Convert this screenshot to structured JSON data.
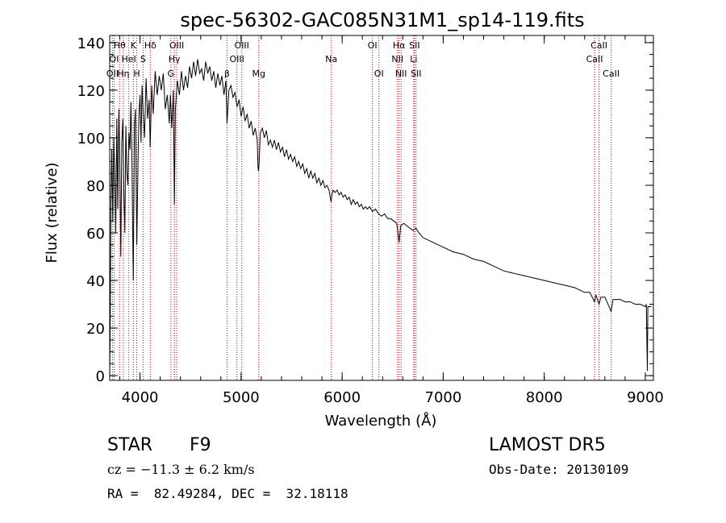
{
  "chart_data": {
    "type": "line",
    "title": "spec-56302-GAC085N31M1_sp14-119.fits",
    "xlabel": "Wavelength (Å)",
    "ylabel": "Flux (relative)",
    "xlim": [
      3700,
      9080
    ],
    "ylim": [
      -2,
      143
    ],
    "xticks": [
      4000,
      5000,
      6000,
      7000,
      8000,
      9000
    ],
    "yticks": [
      0,
      20,
      40,
      60,
      80,
      100,
      120,
      140
    ],
    "grid": false,
    "series": [
      {
        "points": [
          [
            3700,
            0
          ],
          [
            3705,
            20
          ],
          [
            3712,
            72
          ],
          [
            3720,
            95
          ],
          [
            3730,
            65
          ],
          [
            3740,
            100
          ],
          [
            3750,
            85
          ],
          [
            3760,
            60
          ],
          [
            3770,
            108
          ],
          [
            3780,
            70
          ],
          [
            3790,
            112
          ],
          [
            3800,
            90
          ],
          [
            3810,
            50
          ],
          [
            3820,
            98
          ],
          [
            3830,
            108
          ],
          [
            3840,
            78
          ],
          [
            3850,
            60
          ],
          [
            3860,
            105
          ],
          [
            3870,
            85
          ],
          [
            3880,
            80
          ],
          [
            3890,
            102
          ],
          [
            3900,
            95
          ],
          [
            3910,
            115
          ],
          [
            3920,
            90
          ],
          [
            3933,
            40
          ],
          [
            3945,
            105
          ],
          [
            3955,
            112
          ],
          [
            3968,
            55
          ],
          [
            3980,
            90
          ],
          [
            3990,
            110
          ],
          [
            4000,
            118
          ],
          [
            4010,
            98
          ],
          [
            4020,
            122
          ],
          [
            4030,
            112
          ],
          [
            4045,
            100
          ],
          [
            4060,
            125
          ],
          [
            4075,
            108
          ],
          [
            4090,
            116
          ],
          [
            4101,
            96
          ],
          [
            4115,
            122
          ],
          [
            4130,
            110
          ],
          [
            4150,
            128
          ],
          [
            4170,
            118
          ],
          [
            4190,
            126
          ],
          [
            4210,
            120
          ],
          [
            4230,
            127
          ],
          [
            4250,
            112
          ],
          [
            4270,
            118
          ],
          [
            4290,
            106
          ],
          [
            4300,
            118
          ],
          [
            4315,
            104
          ],
          [
            4330,
            120
          ],
          [
            4340,
            72
          ],
          [
            4350,
            112
          ],
          [
            4370,
            124
          ],
          [
            4390,
            118
          ],
          [
            4410,
            128
          ],
          [
            4430,
            120
          ],
          [
            4450,
            126
          ],
          [
            4470,
            121
          ],
          [
            4490,
            130
          ],
          [
            4510,
            125
          ],
          [
            4530,
            132
          ],
          [
            4550,
            126
          ],
          [
            4570,
            133
          ],
          [
            4590,
            127
          ],
          [
            4610,
            129
          ],
          [
            4630,
            124
          ],
          [
            4650,
            132
          ],
          [
            4670,
            127
          ],
          [
            4690,
            130
          ],
          [
            4710,
            124
          ],
          [
            4730,
            128
          ],
          [
            4750,
            121
          ],
          [
            4770,
            127
          ],
          [
            4790,
            122
          ],
          [
            4810,
            126
          ],
          [
            4830,
            118
          ],
          [
            4850,
            124
          ],
          [
            4861,
            106
          ],
          [
            4880,
            120
          ],
          [
            4900,
            122
          ],
          [
            4920,
            117
          ],
          [
            4940,
            119
          ],
          [
            4960,
            113
          ],
          [
            4980,
            116
          ],
          [
            5000,
            109
          ],
          [
            5020,
            113
          ],
          [
            5040,
            107
          ],
          [
            5060,
            110
          ],
          [
            5080,
            104
          ],
          [
            5100,
            107
          ],
          [
            5120,
            101
          ],
          [
            5140,
            104
          ],
          [
            5160,
            99
          ],
          [
            5167,
            88
          ],
          [
            5172,
            86
          ],
          [
            5178,
            89
          ],
          [
            5190,
            102
          ],
          [
            5210,
            104
          ],
          [
            5230,
            100
          ],
          [
            5250,
            103
          ],
          [
            5270,
            97
          ],
          [
            5290,
            99
          ],
          [
            5310,
            96
          ],
          [
            5330,
            99
          ],
          [
            5350,
            95
          ],
          [
            5370,
            98
          ],
          [
            5390,
            94
          ],
          [
            5410,
            96
          ],
          [
            5430,
            92
          ],
          [
            5450,
            95
          ],
          [
            5470,
            91
          ],
          [
            5490,
            93
          ],
          [
            5510,
            90
          ],
          [
            5530,
            92
          ],
          [
            5550,
            88
          ],
          [
            5570,
            90
          ],
          [
            5590,
            87
          ],
          [
            5610,
            89
          ],
          [
            5630,
            85
          ],
          [
            5650,
            87
          ],
          [
            5670,
            83
          ],
          [
            5690,
            86
          ],
          [
            5710,
            83
          ],
          [
            5730,
            85
          ],
          [
            5750,
            81
          ],
          [
            5770,
            83
          ],
          [
            5790,
            80
          ],
          [
            5810,
            82
          ],
          [
            5830,
            79
          ],
          [
            5850,
            80
          ],
          [
            5870,
            78
          ],
          [
            5890,
            73
          ],
          [
            5895,
            75
          ],
          [
            5910,
            78
          ],
          [
            5930,
            77
          ],
          [
            5950,
            78
          ],
          [
            5970,
            76
          ],
          [
            5990,
            77
          ],
          [
            6010,
            75
          ],
          [
            6030,
            76
          ],
          [
            6050,
            74
          ],
          [
            6070,
            75
          ],
          [
            6090,
            72
          ],
          [
            6110,
            74
          ],
          [
            6130,
            72
          ],
          [
            6150,
            73
          ],
          [
            6170,
            71
          ],
          [
            6190,
            72
          ],
          [
            6210,
            70
          ],
          [
            6230,
            71
          ],
          [
            6250,
            70
          ],
          [
            6270,
            71
          ],
          [
            6300,
            69
          ],
          [
            6330,
            70
          ],
          [
            6360,
            68
          ],
          [
            6390,
            67
          ],
          [
            6420,
            68
          ],
          [
            6450,
            66
          ],
          [
            6480,
            66
          ],
          [
            6510,
            65
          ],
          [
            6540,
            64
          ],
          [
            6563,
            56
          ],
          [
            6580,
            63
          ],
          [
            6610,
            64
          ],
          [
            6640,
            63
          ],
          [
            6670,
            62
          ],
          [
            6700,
            61
          ],
          [
            6730,
            62
          ],
          [
            6760,
            60
          ],
          [
            6800,
            58
          ],
          [
            6850,
            57
          ],
          [
            6900,
            56
          ],
          [
            6950,
            55
          ],
          [
            7000,
            54
          ],
          [
            7100,
            52
          ],
          [
            7200,
            51
          ],
          [
            7300,
            49
          ],
          [
            7400,
            48
          ],
          [
            7500,
            46
          ],
          [
            7600,
            44
          ],
          [
            7700,
            43
          ],
          [
            7800,
            42
          ],
          [
            7900,
            41
          ],
          [
            8000,
            40
          ],
          [
            8100,
            39
          ],
          [
            8200,
            38
          ],
          [
            8300,
            37
          ],
          [
            8400,
            35
          ],
          [
            8450,
            35
          ],
          [
            8498,
            31
          ],
          [
            8510,
            34
          ],
          [
            8542,
            30
          ],
          [
            8560,
            33
          ],
          [
            8600,
            33
          ],
          [
            8662,
            27
          ],
          [
            8680,
            32
          ],
          [
            8750,
            32
          ],
          [
            8800,
            31
          ],
          [
            8850,
            31
          ],
          [
            8900,
            30
          ],
          [
            8950,
            30
          ],
          [
            9000,
            29
          ],
          [
            9010,
            30
          ],
          [
            9020,
            2
          ],
          [
            9025,
            29
          ],
          [
            9040,
            29
          ],
          [
            9060,
            29
          ]
        ]
      }
    ],
    "line_markers": [
      {
        "label": "Hθ",
        "x": 3798,
        "row": 1
      },
      {
        "label": "OII",
        "x": 3727,
        "row": 3
      },
      {
        "label": "Hη",
        "x": 3835,
        "row": 3
      },
      {
        "label": "OI",
        "x": 3744,
        "row": 2
      },
      {
        "label": "HeI",
        "x": 3889,
        "row": 2
      },
      {
        "label": "K",
        "x": 3934,
        "row": 1
      },
      {
        "label": "H",
        "x": 3968,
        "row": 3
      },
      {
        "label": "S",
        "x": 4030,
        "row": 2
      },
      {
        "label": "Hδ",
        "x": 4102,
        "row": 1
      },
      {
        "label": "OIII",
        "x": 4363,
        "row": 1
      },
      {
        "label": "Hγ",
        "x": 4340,
        "row": 2
      },
      {
        "label": "G",
        "x": 4305,
        "row": 3
      },
      {
        "label": "OIII",
        "x": 5007,
        "row": 1
      },
      {
        "label": "OIII",
        "x": 4959,
        "row": 2
      },
      {
        "label": "β",
        "x": 4861,
        "row": 3
      },
      {
        "label": "Mg",
        "x": 5175,
        "row": 3
      },
      {
        "label": "Na",
        "x": 5893,
        "row": 2
      },
      {
        "label": "OI",
        "x": 6300,
        "row": 1
      },
      {
        "label": "OI",
        "x": 6364,
        "row": 3
      },
      {
        "label": "Hα",
        "x": 6563,
        "row": 1
      },
      {
        "label": "NII",
        "x": 6548,
        "row": 2
      },
      {
        "label": "NII",
        "x": 6583,
        "row": 3
      },
      {
        "label": "SII",
        "x": 6716,
        "row": 1
      },
      {
        "label": "Li",
        "x": 6708,
        "row": 2
      },
      {
        "label": "SII",
        "x": 6731,
        "row": 3
      },
      {
        "label": "CaII",
        "x": 8542,
        "row": 1
      },
      {
        "label": "CaII",
        "x": 8498,
        "row": 2
      },
      {
        "label": "CaII",
        "x": 8662,
        "row": 3
      }
    ]
  },
  "info": {
    "object_type": "STAR",
    "subclass": "F9",
    "survey": "LAMOST DR5",
    "redshift": "cz = −11.3 ± 6.2 km/s",
    "obs_date": "Obs-Date: 20130109",
    "coords": "RA =  82.49284, DEC =  32.18118"
  },
  "colors": {
    "spectrum": "#000000",
    "marker_line": "#c00000",
    "text": "#000000"
  }
}
